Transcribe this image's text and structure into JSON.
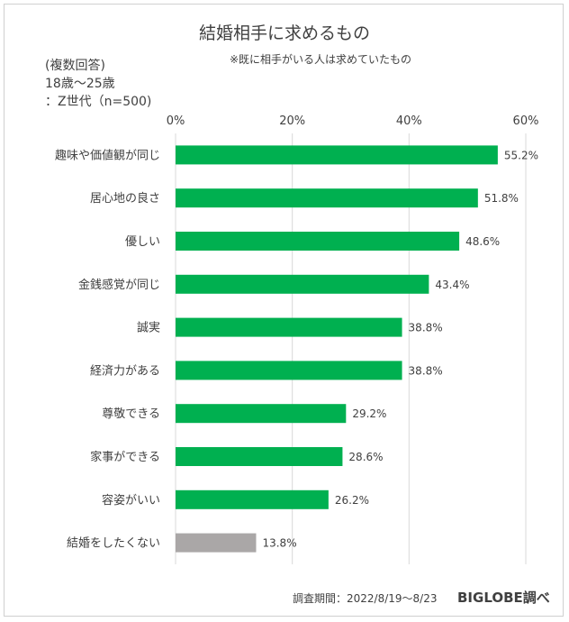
{
  "chart_data": {
    "type": "bar",
    "orientation": "horizontal",
    "title": "結婚相手に求めるもの",
    "subtitle": "※既に相手がいる人は求めていたもの",
    "notes": [
      "(複数回答)",
      "18歳〜25歳",
      "：Z世代（n=500)"
    ],
    "categories": [
      "趣味や価値観が同じ",
      "居心地の良さ",
      "優しい",
      "金銭感覚が同じ",
      "誠実",
      "経済力がある",
      "尊敬できる",
      "家事ができる",
      "容姿がいい",
      "結婚をしたくない"
    ],
    "values": [
      55.2,
      51.8,
      48.6,
      43.4,
      38.8,
      38.8,
      29.2,
      28.6,
      26.2,
      13.8
    ],
    "value_labels": [
      "55.2%",
      "51.8%",
      "48.6%",
      "43.4%",
      "38.8%",
      "38.8%",
      "29.2%",
      "28.6%",
      "26.2%",
      "13.8%"
    ],
    "xlim": [
      0,
      60
    ],
    "xticks": [
      0,
      20,
      40,
      60
    ],
    "xtick_labels": [
      "0%",
      "20%",
      "40%",
      "60%"
    ],
    "grid": true,
    "colors": {
      "primary": "#00b050",
      "highlight_last": "#aaa7a7",
      "gridline": "#d9d9d9",
      "text": "#404040"
    }
  },
  "footer": {
    "period": "調査期間：2022/8/19〜8/23",
    "brand": "BIGLOBE調べ"
  }
}
